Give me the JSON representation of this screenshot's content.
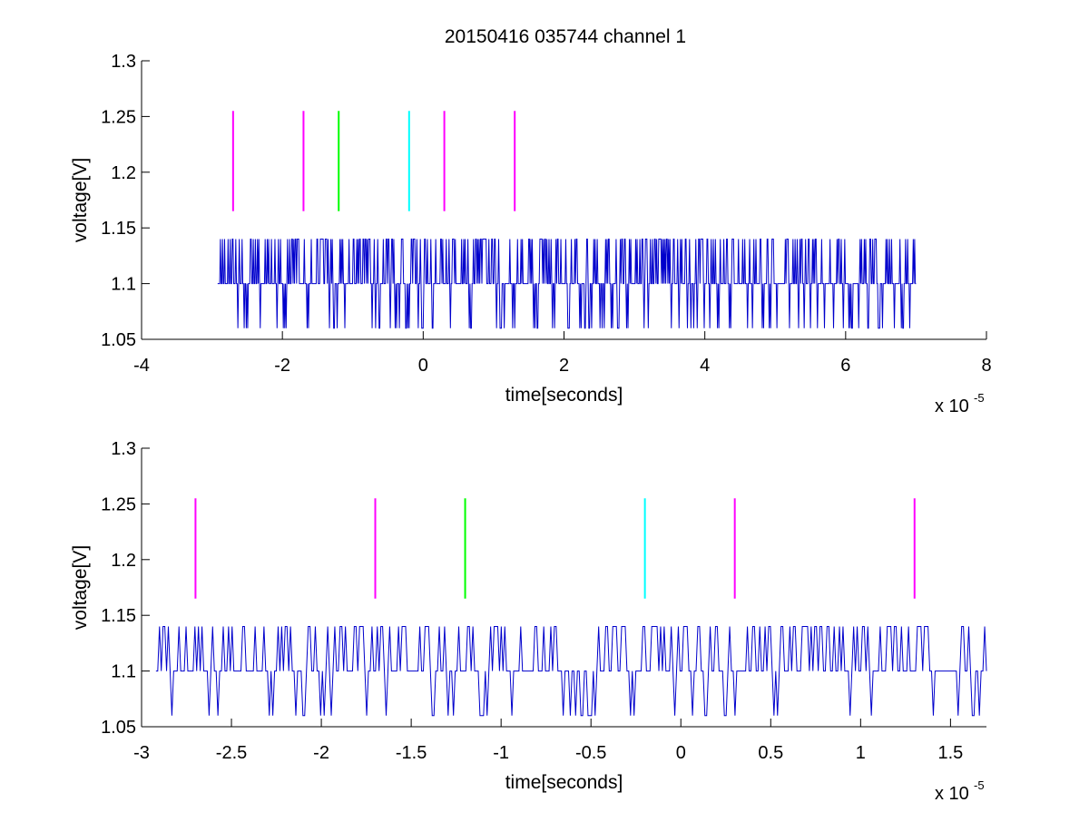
{
  "figure": {
    "title": "20150416 035744 channel 1"
  },
  "chart_data": [
    {
      "type": "line",
      "title": "20150416 035744 channel 1",
      "xlabel": "time[seconds]",
      "ylabel": "voltage[V]",
      "x_multiplier_label": "x 10",
      "x_multiplier_exponent": "-5",
      "xlim": [
        -4,
        8
      ],
      "ylim": [
        1.05,
        1.3
      ],
      "x_ticks": [
        -4,
        -2,
        0,
        2,
        4,
        6,
        8
      ],
      "x_tick_labels": [
        "-4",
        "-2",
        "0",
        "2",
        "4",
        "6",
        "8"
      ],
      "y_ticks": [
        1.05,
        1.1,
        1.15,
        1.2,
        1.25,
        1.3
      ],
      "y_tick_labels": [
        "1.05",
        "1.1",
        "1.15",
        "1.2",
        "1.25",
        "1.3"
      ],
      "grid": false,
      "series": [
        {
          "color": "#0000cc",
          "x_range": [
            -2.92,
            7.0
          ],
          "levels": [
            1.06,
            1.1,
            1.14
          ],
          "baseline": 1.1,
          "seed": 11,
          "sample_count": 1000
        }
      ],
      "markers": [
        {
          "x": -2.7,
          "y_range": [
            1.165,
            1.255
          ],
          "color": "#ff00ff"
        },
        {
          "x": -1.7,
          "y_range": [
            1.165,
            1.255
          ],
          "color": "#ff00ff"
        },
        {
          "x": -1.2,
          "y_range": [
            1.165,
            1.255
          ],
          "color": "#00ff00"
        },
        {
          "x": -0.2,
          "y_range": [
            1.165,
            1.255
          ],
          "color": "#00ffff"
        },
        {
          "x": 0.3,
          "y_range": [
            1.165,
            1.255
          ],
          "color": "#ff00ff"
        },
        {
          "x": 1.3,
          "y_range": [
            1.165,
            1.255
          ],
          "color": "#ff00ff"
        }
      ]
    },
    {
      "type": "line",
      "title": "",
      "xlabel": "time[seconds]",
      "ylabel": "voltage[V]",
      "x_multiplier_label": "x 10",
      "x_multiplier_exponent": "-5",
      "xlim": [
        -3.0,
        1.7
      ],
      "ylim": [
        1.05,
        1.3
      ],
      "x_ticks": [
        -3,
        -2.5,
        -2,
        -1.5,
        -1,
        -0.5,
        0,
        0.5,
        1,
        1.5
      ],
      "x_tick_labels": [
        "-3",
        "-2.5",
        "-2",
        "-1.5",
        "-1",
        "-0.5",
        "0",
        "0.5",
        "1",
        "1.5"
      ],
      "y_ticks": [
        1.05,
        1.1,
        1.15,
        1.2,
        1.25,
        1.3
      ],
      "y_tick_labels": [
        "1.05",
        "1.1",
        "1.15",
        "1.2",
        "1.25",
        "1.3"
      ],
      "grid": false,
      "series": [
        {
          "color": "#0000cc",
          "x_range": [
            -2.92,
            1.7
          ],
          "levels": [
            1.06,
            1.1,
            1.14
          ],
          "baseline": 1.1,
          "seed": 23,
          "sample_count": 470
        }
      ],
      "markers": [
        {
          "x": -2.7,
          "y_range": [
            1.165,
            1.255
          ],
          "color": "#ff00ff"
        },
        {
          "x": -1.7,
          "y_range": [
            1.165,
            1.255
          ],
          "color": "#ff00ff"
        },
        {
          "x": -1.2,
          "y_range": [
            1.165,
            1.255
          ],
          "color": "#00ff00"
        },
        {
          "x": -0.2,
          "y_range": [
            1.165,
            1.255
          ],
          "color": "#00ffff"
        },
        {
          "x": 0.3,
          "y_range": [
            1.165,
            1.255
          ],
          "color": "#ff00ff"
        },
        {
          "x": 1.3,
          "y_range": [
            1.165,
            1.255
          ],
          "color": "#ff00ff"
        }
      ]
    }
  ]
}
